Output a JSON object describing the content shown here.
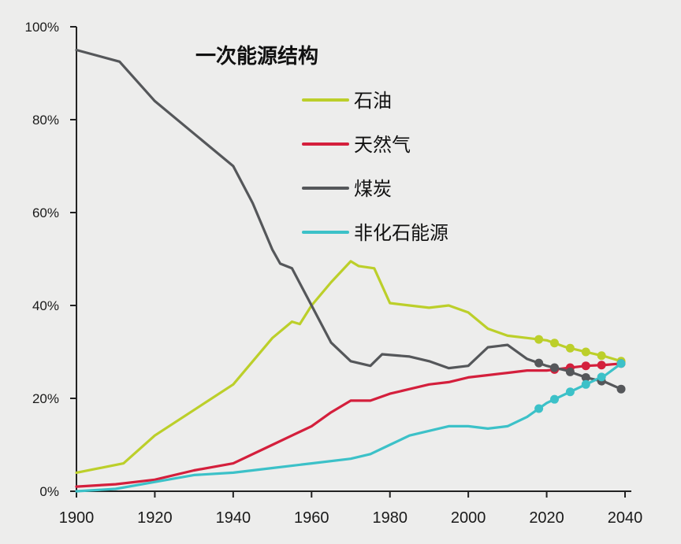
{
  "chart_data": {
    "type": "line",
    "title": "一次能源结构",
    "xlim": [
      1900,
      2040
    ],
    "ylim": [
      0,
      100
    ],
    "x_ticks": [
      1900,
      1920,
      1940,
      1960,
      1980,
      2000,
      2020,
      2040
    ],
    "y_ticks": [
      0,
      20,
      40,
      60,
      80,
      100
    ],
    "y_tick_labels": [
      "0%",
      "20%",
      "40%",
      "60%",
      "80%",
      "100%"
    ],
    "grid": false,
    "legend_position": "top-center",
    "series": [
      {
        "name": "石油",
        "color": "#bccf2a",
        "points": [
          [
            1900,
            4
          ],
          [
            1912,
            6
          ],
          [
            1920,
            12
          ],
          [
            1940,
            23
          ],
          [
            1950,
            33
          ],
          [
            1955,
            36.5
          ],
          [
            1957,
            36
          ],
          [
            1960,
            40
          ],
          [
            1965,
            45
          ],
          [
            1970,
            49.5
          ],
          [
            1972,
            48.5
          ],
          [
            1976,
            48
          ],
          [
            1980,
            40.5
          ],
          [
            1985,
            40
          ],
          [
            1990,
            39.5
          ],
          [
            1995,
            40
          ],
          [
            2000,
            38.5
          ],
          [
            2005,
            35
          ],
          [
            2010,
            33.5
          ],
          [
            2015,
            33
          ],
          [
            2020,
            32.5
          ],
          [
            2025,
            31
          ],
          [
            2030,
            30
          ],
          [
            2035,
            29
          ],
          [
            2039,
            28
          ]
        ],
        "projection_markers_x": [
          2018,
          2022,
          2026,
          2030,
          2034,
          2039
        ]
      },
      {
        "name": "天然气",
        "color": "#d41f3c",
        "points": [
          [
            1900,
            1
          ],
          [
            1910,
            1.5
          ],
          [
            1920,
            2.5
          ],
          [
            1930,
            4.5
          ],
          [
            1940,
            6
          ],
          [
            1950,
            10
          ],
          [
            1955,
            12
          ],
          [
            1960,
            14
          ],
          [
            1965,
            17
          ],
          [
            1970,
            19.5
          ],
          [
            1975,
            19.5
          ],
          [
            1980,
            21
          ],
          [
            1985,
            22
          ],
          [
            1990,
            23
          ],
          [
            1995,
            23.5
          ],
          [
            2000,
            24.5
          ],
          [
            2005,
            25
          ],
          [
            2010,
            25.5
          ],
          [
            2015,
            26
          ],
          [
            2020,
            26
          ],
          [
            2025,
            26.5
          ],
          [
            2030,
            27
          ],
          [
            2035,
            27.2
          ],
          [
            2039,
            27.5
          ]
        ],
        "projection_markers_x": [
          2022,
          2026,
          2030,
          2034,
          2039
        ]
      },
      {
        "name": "煤炭",
        "color": "#55575a",
        "points": [
          [
            1900,
            95
          ],
          [
            1911,
            92.5
          ],
          [
            1920,
            84
          ],
          [
            1930,
            77
          ],
          [
            1940,
            70
          ],
          [
            1945,
            62
          ],
          [
            1950,
            52
          ],
          [
            1952,
            49
          ],
          [
            1955,
            48
          ],
          [
            1960,
            40
          ],
          [
            1965,
            32
          ],
          [
            1970,
            28
          ],
          [
            1975,
            27
          ],
          [
            1978,
            29.5
          ],
          [
            1985,
            29
          ],
          [
            1990,
            28
          ],
          [
            1995,
            26.5
          ],
          [
            2000,
            27
          ],
          [
            2005,
            31
          ],
          [
            2010,
            31.5
          ],
          [
            2015,
            28.5
          ],
          [
            2020,
            27
          ],
          [
            2025,
            26
          ],
          [
            2030,
            24.5
          ],
          [
            2035,
            23.5
          ],
          [
            2039,
            22
          ]
        ],
        "projection_markers_x": [
          2018,
          2022,
          2026,
          2030,
          2034,
          2039
        ]
      },
      {
        "name": "非化石能源",
        "color": "#3cc1c8",
        "points": [
          [
            1900,
            0
          ],
          [
            1910,
            0.5
          ],
          [
            1920,
            2
          ],
          [
            1930,
            3.5
          ],
          [
            1940,
            4
          ],
          [
            1950,
            5
          ],
          [
            1960,
            6
          ],
          [
            1970,
            7
          ],
          [
            1975,
            8
          ],
          [
            1980,
            10
          ],
          [
            1985,
            12
          ],
          [
            1990,
            13
          ],
          [
            1995,
            14
          ],
          [
            2000,
            14
          ],
          [
            2005,
            13.5
          ],
          [
            2010,
            14
          ],
          [
            2015,
            16
          ],
          [
            2020,
            19
          ],
          [
            2025,
            21
          ],
          [
            2030,
            23
          ],
          [
            2035,
            25
          ],
          [
            2039,
            27.5
          ]
        ],
        "projection_markers_x": [
          2018,
          2022,
          2026,
          2030,
          2034,
          2039
        ]
      }
    ]
  }
}
